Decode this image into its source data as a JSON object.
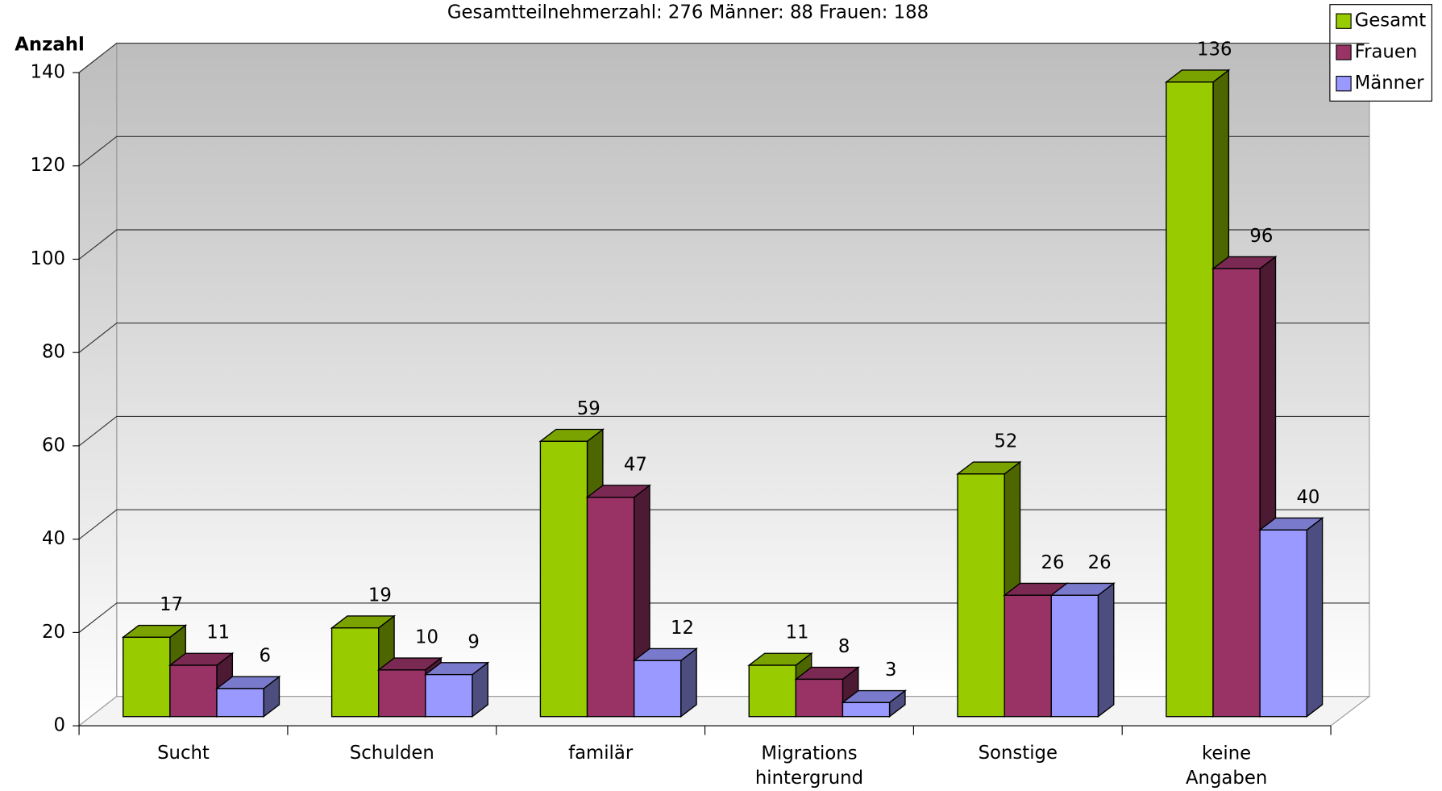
{
  "chart_data": {
    "type": "bar3d",
    "title": "Gesamtteilnehmerzahl: 276  Männer:  88 Frauen: 188",
    "y_label": "Anzahl",
    "categories": [
      "Sucht",
      "Schulden",
      "familär",
      "Migrations hintergrund",
      "Sonstige",
      "keine Angaben"
    ],
    "series": [
      {
        "name": "Gesamt",
        "color": "#99cc00",
        "values": [
          17,
          19,
          59,
          11,
          52,
          136
        ]
      },
      {
        "name": "Frauen",
        "color": "#993366",
        "values": [
          11,
          10,
          47,
          8,
          26,
          96
        ]
      },
      {
        "name": "Männer",
        "color": "#9999ff",
        "values": [
          6,
          9,
          12,
          3,
          26,
          40
        ]
      }
    ],
    "ylim": [
      0,
      140
    ],
    "yticks": [
      0,
      20,
      40,
      60,
      80,
      100,
      120,
      140
    ],
    "grid": true,
    "legend": "top-right"
  }
}
